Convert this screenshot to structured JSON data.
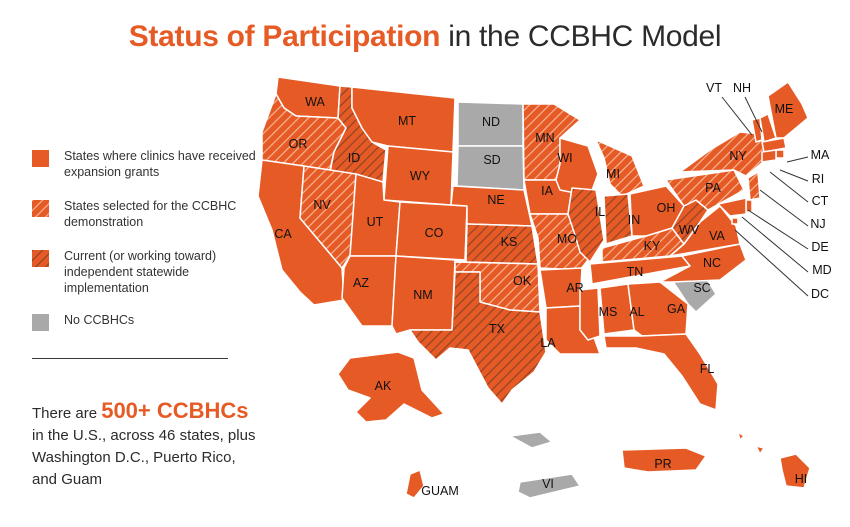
{
  "title": {
    "highlight": "Status of Participation",
    "rest": " in the CCBHC Model"
  },
  "colors": {
    "orange": "#e65a25",
    "gray": "#a9a9a9",
    "hatch_light": "#f2a27f",
    "hatch_dark": "#8e4427"
  },
  "legend": [
    {
      "key": "grant",
      "label": "States where clinics have received expansion grants"
    },
    {
      "key": "demo",
      "label": "States selected for the CCBHC demonstration"
    },
    {
      "key": "statewide",
      "label": "Current (or working toward) independent statewide implementation"
    },
    {
      "key": "none",
      "label": "No CCBHCs"
    }
  ],
  "stat": {
    "prefix": "There are ",
    "number": "500+ CCBHCs",
    "line2": "in the U.S., across 46 states, plus",
    "line3": "Washington D.C., Puerto Rico,",
    "line4": "and Guam"
  },
  "states": [
    {
      "abbr": "WA",
      "status": "grant"
    },
    {
      "abbr": "OR",
      "status": "demo"
    },
    {
      "abbr": "CA",
      "status": "grant"
    },
    {
      "abbr": "ID",
      "status": "statewide"
    },
    {
      "abbr": "NV",
      "status": "demo"
    },
    {
      "abbr": "MT",
      "status": "grant"
    },
    {
      "abbr": "WY",
      "status": "grant"
    },
    {
      "abbr": "UT",
      "status": "grant"
    },
    {
      "abbr": "AZ",
      "status": "grant"
    },
    {
      "abbr": "CO",
      "status": "grant"
    },
    {
      "abbr": "NM",
      "status": "grant"
    },
    {
      "abbr": "ND",
      "status": "none"
    },
    {
      "abbr": "SD",
      "status": "none"
    },
    {
      "abbr": "NE",
      "status": "grant"
    },
    {
      "abbr": "KS",
      "status": "statewide"
    },
    {
      "abbr": "OK",
      "status": "demo"
    },
    {
      "abbr": "TX",
      "status": "statewide"
    },
    {
      "abbr": "MN",
      "status": "demo"
    },
    {
      "abbr": "IA",
      "status": "grant"
    },
    {
      "abbr": "MO",
      "status": "demo"
    },
    {
      "abbr": "AR",
      "status": "grant"
    },
    {
      "abbr": "LA",
      "status": "grant"
    },
    {
      "abbr": "WI",
      "status": "grant"
    },
    {
      "abbr": "IL",
      "status": "statewide"
    },
    {
      "abbr": "MI",
      "status": "demo"
    },
    {
      "abbr": "IN",
      "status": "statewide"
    },
    {
      "abbr": "KY",
      "status": "demo"
    },
    {
      "abbr": "TN",
      "status": "grant"
    },
    {
      "abbr": "MS",
      "status": "grant"
    },
    {
      "abbr": "AL",
      "status": "grant"
    },
    {
      "abbr": "GA",
      "status": "grant"
    },
    {
      "abbr": "FL",
      "status": "grant"
    },
    {
      "abbr": "SC",
      "status": "none"
    },
    {
      "abbr": "NC",
      "status": "grant"
    },
    {
      "abbr": "VA",
      "status": "grant"
    },
    {
      "abbr": "WV",
      "status": "statewide"
    },
    {
      "abbr": "OH",
      "status": "grant"
    },
    {
      "abbr": "PA",
      "status": "demo"
    },
    {
      "abbr": "NY",
      "status": "demo"
    },
    {
      "abbr": "ME",
      "status": "grant"
    },
    {
      "abbr": "VT",
      "status": "grant"
    },
    {
      "abbr": "NH",
      "status": "grant"
    },
    {
      "abbr": "MA",
      "status": "grant"
    },
    {
      "abbr": "RI",
      "status": "grant"
    },
    {
      "abbr": "CT",
      "status": "grant"
    },
    {
      "abbr": "NJ",
      "status": "demo"
    },
    {
      "abbr": "DE",
      "status": "grant"
    },
    {
      "abbr": "MD",
      "status": "grant"
    },
    {
      "abbr": "DC",
      "status": "grant"
    },
    {
      "abbr": "AK",
      "status": "grant"
    },
    {
      "abbr": "HI",
      "status": "grant"
    },
    {
      "abbr": "PR",
      "status": "grant"
    },
    {
      "abbr": "GUAM",
      "status": "grant"
    },
    {
      "abbr": "VI",
      "status": "none"
    }
  ]
}
